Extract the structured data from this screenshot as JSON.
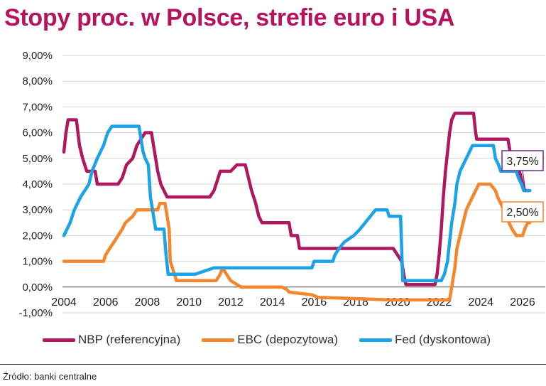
{
  "title": "Stopy proc. w Polsce, strefie euro i USA",
  "source": "Źródło: banki centralne",
  "colors": {
    "title": "#b5135e",
    "nbp": "#b0175f",
    "ebc": "#f4862e",
    "fed": "#1aa3e8",
    "grid": "#d4d4d4"
  },
  "chart_data": {
    "type": "line",
    "title": "Stopy proc. w Polsce, strefie euro i USA",
    "xlabel": "",
    "ylabel": "",
    "xlim": [
      2004,
      2026.4
    ],
    "ylim": [
      -1,
      9
    ],
    "grid": true,
    "legend_position": "bottom",
    "x_ticks": [
      2004,
      2006,
      2008,
      2010,
      2012,
      2014,
      2016,
      2018,
      2020,
      2022,
      2024,
      2026
    ],
    "x_tick_labels": [
      "2004",
      "2006",
      "2008",
      "2010",
      "2012",
      "2014",
      "2016",
      "2018",
      "2020",
      "2022",
      "2024",
      "2026"
    ],
    "y_ticks": [
      -1,
      0,
      1,
      2,
      3,
      4,
      5,
      6,
      7,
      8,
      9
    ],
    "y_tick_labels": [
      "-1,00%",
      "0,00%",
      "1,00%",
      "2,00%",
      "3,00%",
      "4,00%",
      "5,00%",
      "6,00%",
      "7,00%",
      "8,00%",
      "9,00%"
    ],
    "annotations": [
      {
        "text": "3,75%",
        "x": 2026.2,
        "y": 3.75,
        "color": "#6b2a8c"
      },
      {
        "text": "2,50%",
        "x": 2026.2,
        "y": 2.5,
        "color": "#f4862e"
      }
    ],
    "series": [
      {
        "name": "NBP (referencyjna)",
        "color": "#b0175f",
        "points": [
          [
            2004.0,
            5.25
          ],
          [
            2004.1,
            6.0
          ],
          [
            2004.2,
            6.5
          ],
          [
            2004.6,
            6.5
          ],
          [
            2004.75,
            5.5
          ],
          [
            2004.9,
            5.0
          ],
          [
            2005.1,
            4.5
          ],
          [
            2005.5,
            4.5
          ],
          [
            2005.6,
            4.0
          ],
          [
            2006.6,
            4.0
          ],
          [
            2006.8,
            4.25
          ],
          [
            2006.9,
            4.5
          ],
          [
            2007.0,
            4.75
          ],
          [
            2007.3,
            5.0
          ],
          [
            2007.5,
            5.5
          ],
          [
            2007.7,
            5.75
          ],
          [
            2007.9,
            6.0
          ],
          [
            2008.2,
            6.0
          ],
          [
            2008.4,
            5.0
          ],
          [
            2008.5,
            4.5
          ],
          [
            2008.65,
            4.0
          ],
          [
            2008.8,
            3.75
          ],
          [
            2008.95,
            3.5
          ],
          [
            2011.0,
            3.5
          ],
          [
            2011.2,
            3.75
          ],
          [
            2011.3,
            4.0
          ],
          [
            2011.5,
            4.5
          ],
          [
            2012.0,
            4.5
          ],
          [
            2012.3,
            4.75
          ],
          [
            2012.7,
            4.75
          ],
          [
            2012.85,
            4.25
          ],
          [
            2013.0,
            3.75
          ],
          [
            2013.2,
            3.25
          ],
          [
            2013.35,
            2.75
          ],
          [
            2013.5,
            2.5
          ],
          [
            2014.8,
            2.5
          ],
          [
            2014.9,
            2.0
          ],
          [
            2015.2,
            2.0
          ],
          [
            2015.3,
            1.5
          ],
          [
            2019.8,
            1.5
          ],
          [
            2020.2,
            1.0
          ],
          [
            2020.3,
            0.5
          ],
          [
            2020.4,
            0.1
          ],
          [
            2021.8,
            0.1
          ],
          [
            2021.9,
            0.5
          ],
          [
            2022.0,
            1.25
          ],
          [
            2022.1,
            2.25
          ],
          [
            2022.2,
            3.5
          ],
          [
            2022.3,
            4.5
          ],
          [
            2022.4,
            5.25
          ],
          [
            2022.5,
            6.0
          ],
          [
            2022.6,
            6.5
          ],
          [
            2022.75,
            6.75
          ],
          [
            2023.65,
            6.75
          ],
          [
            2023.75,
            6.0
          ],
          [
            2023.8,
            5.75
          ],
          [
            2025.3,
            5.75
          ],
          [
            2025.4,
            5.25
          ],
          [
            2025.6,
            5.0
          ],
          [
            2025.75,
            4.75
          ],
          [
            2025.85,
            4.5
          ],
          [
            2026.0,
            4.0
          ],
          [
            2026.1,
            3.75
          ],
          [
            2026.3,
            3.75
          ]
        ]
      },
      {
        "name": "EBC (depozytowa)",
        "color": "#f4862e",
        "points": [
          [
            2004.0,
            1.0
          ],
          [
            2005.9,
            1.0
          ],
          [
            2006.0,
            1.25
          ],
          [
            2006.2,
            1.5
          ],
          [
            2006.4,
            1.75
          ],
          [
            2006.6,
            2.0
          ],
          [
            2006.8,
            2.25
          ],
          [
            2006.95,
            2.5
          ],
          [
            2007.3,
            2.75
          ],
          [
            2007.5,
            3.0
          ],
          [
            2008.5,
            3.0
          ],
          [
            2008.6,
            3.25
          ],
          [
            2008.85,
            3.25
          ],
          [
            2008.95,
            2.75
          ],
          [
            2009.05,
            2.25
          ],
          [
            2009.1,
            1.0
          ],
          [
            2009.3,
            0.5
          ],
          [
            2009.4,
            0.25
          ],
          [
            2011.3,
            0.25
          ],
          [
            2011.5,
            0.5
          ],
          [
            2011.6,
            0.75
          ],
          [
            2011.8,
            0.5
          ],
          [
            2012.0,
            0.25
          ],
          [
            2012.5,
            0.0
          ],
          [
            2014.45,
            0.0
          ],
          [
            2014.7,
            -0.1
          ],
          [
            2014.8,
            -0.2
          ],
          [
            2015.9,
            -0.3
          ],
          [
            2016.2,
            -0.4
          ],
          [
            2019.7,
            -0.5
          ],
          [
            2022.5,
            -0.5
          ],
          [
            2022.6,
            0.0
          ],
          [
            2022.75,
            0.75
          ],
          [
            2022.85,
            1.5
          ],
          [
            2023.0,
            2.0
          ],
          [
            2023.15,
            2.5
          ],
          [
            2023.3,
            3.0
          ],
          [
            2023.45,
            3.25
          ],
          [
            2023.6,
            3.5
          ],
          [
            2023.75,
            3.75
          ],
          [
            2023.9,
            4.0
          ],
          [
            2024.45,
            4.0
          ],
          [
            2024.7,
            3.75
          ],
          [
            2024.8,
            3.5
          ],
          [
            2024.95,
            3.25
          ],
          [
            2025.1,
            3.0
          ],
          [
            2025.2,
            2.75
          ],
          [
            2025.35,
            2.5
          ],
          [
            2025.5,
            2.25
          ],
          [
            2025.7,
            2.0
          ],
          [
            2026.0,
            2.0
          ],
          [
            2026.1,
            2.25
          ],
          [
            2026.25,
            2.5
          ],
          [
            2026.35,
            2.5
          ]
        ]
      },
      {
        "name": "Fed (dyskontowa)",
        "color": "#1aa3e8",
        "points": [
          [
            2004.0,
            2.0
          ],
          [
            2004.3,
            2.5
          ],
          [
            2004.5,
            3.0
          ],
          [
            2004.8,
            3.5
          ],
          [
            2005.0,
            3.75
          ],
          [
            2005.2,
            4.0
          ],
          [
            2005.35,
            4.5
          ],
          [
            2005.6,
            5.0
          ],
          [
            2005.9,
            5.5
          ],
          [
            2006.1,
            6.0
          ],
          [
            2006.3,
            6.25
          ],
          [
            2007.0,
            6.25
          ],
          [
            2007.2,
            6.25
          ],
          [
            2007.6,
            6.25
          ],
          [
            2007.7,
            5.75
          ],
          [
            2007.8,
            5.25
          ],
          [
            2007.9,
            5.0
          ],
          [
            2008.05,
            4.75
          ],
          [
            2008.15,
            3.5
          ],
          [
            2008.25,
            3.0
          ],
          [
            2008.4,
            2.25
          ],
          [
            2008.8,
            2.25
          ],
          [
            2008.9,
            1.25
          ],
          [
            2009.0,
            0.5
          ],
          [
            2010.1,
            0.5
          ],
          [
            2010.3,
            0.5
          ],
          [
            2011.2,
            0.75
          ],
          [
            2015.9,
            0.75
          ],
          [
            2016.0,
            1.0
          ],
          [
            2016.9,
            1.0
          ],
          [
            2017.0,
            1.25
          ],
          [
            2017.2,
            1.5
          ],
          [
            2017.45,
            1.75
          ],
          [
            2017.9,
            2.0
          ],
          [
            2018.2,
            2.25
          ],
          [
            2018.45,
            2.5
          ],
          [
            2018.7,
            2.75
          ],
          [
            2018.95,
            3.0
          ],
          [
            2019.5,
            3.0
          ],
          [
            2019.6,
            2.75
          ],
          [
            2020.15,
            2.75
          ],
          [
            2020.25,
            0.25
          ],
          [
            2022.1,
            0.25
          ],
          [
            2022.25,
            0.5
          ],
          [
            2022.4,
            1.0
          ],
          [
            2022.5,
            1.75
          ],
          [
            2022.6,
            2.5
          ],
          [
            2022.75,
            3.25
          ],
          [
            2022.85,
            4.0
          ],
          [
            2023.0,
            4.5
          ],
          [
            2023.15,
            4.75
          ],
          [
            2023.3,
            5.0
          ],
          [
            2023.45,
            5.25
          ],
          [
            2023.6,
            5.5
          ],
          [
            2024.6,
            5.5
          ],
          [
            2024.7,
            5.0
          ],
          [
            2024.85,
            4.75
          ],
          [
            2024.95,
            4.5
          ],
          [
            2025.7,
            4.5
          ],
          [
            2025.8,
            4.25
          ],
          [
            2025.95,
            4.0
          ],
          [
            2026.05,
            3.75
          ],
          [
            2026.35,
            3.75
          ]
        ]
      }
    ]
  },
  "legend": [
    {
      "label": "NBP (referencyjna)",
      "color": "#b0175f"
    },
    {
      "label": "EBC (depozytowa)",
      "color": "#f4862e"
    },
    {
      "label": "Fed (dyskontowa)",
      "color": "#1aa3e8"
    }
  ]
}
